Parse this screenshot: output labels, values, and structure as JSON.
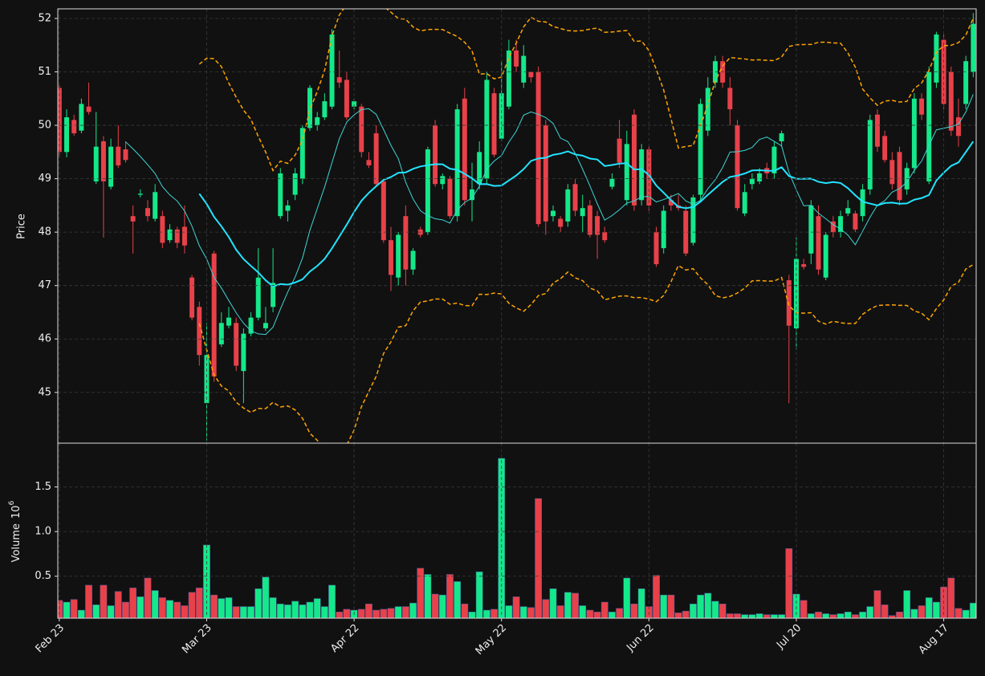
{
  "chart_data": {
    "type": "candlestick",
    "ylabel": "Price",
    "volume_ylabel": "Volume",
    "volume_exponent_base": 10,
    "volume_exponent": 6,
    "categories": [
      "Feb 23",
      null,
      null,
      null,
      null,
      null,
      null,
      null,
      null,
      null,
      null,
      null,
      null,
      null,
      null,
      null,
      null,
      null,
      null,
      null,
      "Mar 23",
      null,
      null,
      null,
      null,
      null,
      null,
      null,
      null,
      null,
      null,
      null,
      null,
      null,
      null,
      null,
      null,
      null,
      null,
      null,
      "Apr 22",
      null,
      null,
      null,
      null,
      null,
      null,
      null,
      null,
      null,
      null,
      null,
      null,
      null,
      null,
      null,
      null,
      null,
      null,
      null,
      "May 22",
      null,
      null,
      null,
      null,
      null,
      null,
      null,
      null,
      null,
      null,
      null,
      null,
      null,
      null,
      null,
      null,
      null,
      null,
      null,
      "Jun 22",
      null,
      null,
      null,
      null,
      null,
      null,
      null,
      null,
      null,
      null,
      null,
      null,
      null,
      null,
      null,
      null,
      null,
      null,
      null,
      "Jul 20",
      null,
      null,
      null,
      null,
      null,
      null,
      null,
      null,
      null,
      null,
      null,
      null,
      null,
      null,
      null,
      null,
      null,
      null,
      null,
      "Aug 17",
      null,
      null,
      null,
      null
    ],
    "open": [
      50.7,
      49.5,
      50.1,
      49.9,
      50.35,
      48.95,
      49.7,
      48.85,
      49.6,
      49.55,
      48.3,
      48.7,
      48.45,
      48.25,
      48.3,
      47.85,
      48.05,
      48.1,
      47.15,
      46.6,
      44.8,
      47.6,
      45.9,
      46.25,
      46.3,
      45.4,
      46.1,
      46.4,
      46.2,
      46.6,
      48.3,
      48.4,
      48.7,
      49.0,
      49.95,
      50.0,
      50.15,
      50.35,
      50.9,
      50.85,
      50.35,
      50.35,
      49.35,
      49.85,
      48.95,
      47.85,
      47.15,
      48.3,
      47.3,
      48.05,
      48.0,
      50.0,
      48.9,
      49.0,
      48.3,
      50.5,
      48.6,
      48.9,
      49.0,
      50.6,
      49.75,
      50.35,
      51.4,
      50.8,
      51.0,
      51.0,
      50.0,
      48.3,
      48.25,
      48.2,
      48.9,
      48.3,
      48.5,
      48.3,
      48.0,
      48.85,
      49.75,
      48.6,
      50.2,
      48.6,
      49.55,
      48.0,
      47.7,
      48.6,
      48.5,
      48.4,
      47.8,
      48.7,
      49.9,
      50.8,
      51.2,
      50.7,
      50.0,
      48.35,
      48.9,
      48.95,
      49.2,
      49.1,
      49.7,
      47.1,
      46.2,
      47.4,
      47.6,
      48.3,
      47.15,
      48.2,
      48.0,
      48.35,
      48.35,
      48.3,
      48.8,
      50.2,
      49.8,
      49.35,
      49.5,
      48.8,
      49.2,
      50.5,
      48.95,
      50.8,
      51.6,
      51.0,
      50.15,
      50.4,
      51.0
    ],
    "high": [
      50.75,
      50.3,
      50.2,
      50.5,
      50.8,
      50.25,
      49.8,
      49.75,
      50.0,
      49.7,
      48.5,
      48.8,
      48.6,
      48.9,
      48.4,
      48.15,
      48.1,
      48.5,
      47.2,
      46.7,
      46.3,
      47.65,
      46.5,
      46.6,
      46.4,
      46.2,
      46.5,
      47.7,
      46.6,
      47.7,
      49.2,
      48.6,
      49.2,
      50.0,
      50.75,
      50.25,
      50.6,
      51.8,
      51.4,
      51.0,
      50.5,
      50.4,
      49.5,
      50.0,
      49.0,
      48.1,
      48.0,
      48.5,
      47.7,
      48.1,
      49.6,
      50.1,
      49.1,
      49.05,
      50.4,
      50.7,
      49.3,
      49.7,
      51.0,
      50.7,
      51.2,
      51.6,
      51.6,
      51.5,
      51.0,
      51.1,
      50.1,
      48.5,
      48.3,
      48.9,
      49.0,
      48.7,
      48.6,
      48.4,
      48.1,
      49.1,
      50.1,
      49.9,
      50.3,
      49.65,
      49.6,
      48.1,
      48.5,
      48.7,
      48.7,
      48.5,
      48.7,
      50.5,
      50.9,
      51.3,
      51.3,
      50.9,
      50.1,
      48.9,
      49.1,
      49.2,
      49.3,
      49.7,
      49.9,
      47.2,
      47.9,
      47.5,
      48.6,
      48.5,
      48.0,
      48.3,
      48.4,
      48.6,
      48.4,
      48.9,
      50.2,
      50.3,
      49.9,
      49.5,
      49.6,
      49.3,
      50.6,
      50.6,
      51.1,
      51.75,
      51.7,
      51.1,
      50.5,
      51.3,
      52.1
    ],
    "low": [
      49.4,
      49.4,
      49.8,
      49.85,
      50.2,
      48.9,
      47.9,
      48.8,
      49.2,
      49.3,
      47.6,
      48.65,
      48.2,
      48.2,
      47.7,
      47.8,
      47.7,
      47.6,
      46.35,
      45.5,
      44.1,
      45.2,
      45.85,
      46.2,
      45.4,
      44.8,
      46.05,
      46.35,
      46.15,
      46.5,
      48.25,
      48.2,
      48.6,
      48.9,
      49.9,
      49.9,
      50.1,
      50.3,
      50.7,
      50.1,
      50.3,
      49.4,
      49.2,
      48.85,
      47.8,
      46.9,
      47.0,
      47.0,
      47.2,
      47.9,
      47.95,
      48.85,
      48.8,
      48.25,
      48.2,
      48.5,
      48.2,
      48.8,
      48.9,
      49.4,
      49.7,
      50.3,
      51.0,
      50.7,
      50.8,
      48.1,
      47.95,
      48.2,
      48.0,
      48.1,
      48.3,
      48.0,
      47.9,
      47.5,
      47.8,
      48.8,
      49.2,
      48.5,
      48.4,
      48.5,
      48.4,
      47.35,
      47.6,
      48.4,
      48.4,
      47.55,
      47.75,
      48.6,
      49.8,
      50.7,
      50.7,
      50.0,
      48.4,
      48.3,
      48.8,
      48.9,
      49.0,
      49.0,
      49.6,
      44.8,
      45.8,
      47.3,
      47.4,
      47.2,
      47.1,
      47.9,
      47.9,
      48.3,
      48.0,
      48.2,
      48.7,
      49.5,
      49.3,
      48.8,
      48.5,
      48.7,
      49.1,
      50.1,
      48.9,
      50.7,
      50.3,
      49.8,
      49.6,
      50.3,
      50.9
    ],
    "close": [
      49.5,
      50.15,
      49.85,
      50.4,
      50.25,
      49.6,
      48.95,
      49.6,
      49.25,
      49.35,
      48.2,
      48.72,
      48.3,
      48.75,
      47.8,
      48.05,
      47.8,
      47.75,
      46.4,
      45.7,
      45.7,
      45.3,
      46.3,
      46.4,
      45.5,
      46.1,
      46.4,
      47.15,
      46.3,
      47.05,
      49.1,
      48.5,
      49.1,
      49.95,
      50.7,
      50.15,
      50.45,
      51.7,
      50.8,
      50.15,
      50.45,
      49.5,
      49.25,
      48.9,
      47.85,
      47.2,
      47.95,
      47.3,
      47.65,
      47.95,
      49.55,
      48.9,
      49.05,
      48.3,
      50.3,
      48.6,
      48.8,
      49.5,
      50.85,
      49.45,
      50.6,
      51.4,
      51.1,
      51.3,
      50.9,
      48.15,
      48.2,
      48.4,
      48.1,
      48.8,
      48.4,
      48.45,
      47.95,
      47.95,
      47.85,
      49.0,
      49.3,
      49.65,
      48.5,
      49.55,
      48.5,
      47.4,
      48.4,
      48.5,
      48.45,
      47.6,
      48.65,
      50.4,
      50.7,
      51.2,
      50.8,
      50.3,
      48.45,
      48.75,
      49.0,
      49.1,
      49.1,
      49.6,
      49.85,
      46.25,
      47.5,
      47.35,
      48.5,
      47.3,
      47.95,
      48.0,
      48.3,
      48.45,
      48.05,
      48.8,
      50.1,
      49.6,
      49.35,
      48.9,
      48.6,
      49.2,
      50.5,
      50.2,
      51.0,
      51.7,
      50.4,
      49.9,
      49.8,
      51.2,
      51.9
    ],
    "volume": [
      0.23,
      0.21,
      0.24,
      0.12,
      0.4,
      0.18,
      0.4,
      0.17,
      0.33,
      0.21,
      0.37,
      0.27,
      0.48,
      0.34,
      0.26,
      0.23,
      0.21,
      0.17,
      0.32,
      0.37,
      0.85,
      0.29,
      0.25,
      0.26,
      0.16,
      0.16,
      0.16,
      0.36,
      0.49,
      0.26,
      0.19,
      0.18,
      0.22,
      0.18,
      0.21,
      0.25,
      0.16,
      0.4,
      0.1,
      0.13,
      0.12,
      0.13,
      0.19,
      0.12,
      0.13,
      0.14,
      0.16,
      0.16,
      0.2,
      0.59,
      0.52,
      0.3,
      0.29,
      0.52,
      0.44,
      0.19,
      0.1,
      0.55,
      0.12,
      0.13,
      1.82,
      0.17,
      0.27,
      0.16,
      0.15,
      1.37,
      0.24,
      0.36,
      0.17,
      0.32,
      0.31,
      0.17,
      0.12,
      0.1,
      0.21,
      0.1,
      0.14,
      0.48,
      0.19,
      0.36,
      0.16,
      0.51,
      0.29,
      0.29,
      0.09,
      0.11,
      0.19,
      0.29,
      0.31,
      0.22,
      0.19,
      0.08,
      0.08,
      0.07,
      0.07,
      0.08,
      0.07,
      0.07,
      0.07,
      0.81,
      0.3,
      0.23,
      0.08,
      0.1,
      0.08,
      0.07,
      0.08,
      0.1,
      0.07,
      0.1,
      0.16,
      0.34,
      0.18,
      0.06,
      0.1,
      0.34,
      0.13,
      0.17,
      0.26,
      0.21,
      0.38,
      0.48,
      0.14,
      0.12,
      0.2
    ],
    "up_color": "#14e88a",
    "down_color": "#e8414a",
    "xlim": [
      -0.2,
      124.4
    ],
    "ylim": [
      44.05,
      52.18
    ],
    "yticks": [
      45,
      46,
      47,
      48,
      49,
      50,
      51,
      52
    ],
    "volume_ylim": [
      0.03,
      1.99
    ],
    "volume_yticks": [
      0.5,
      {
        "value": 1,
        "label": "1.0"
      },
      1.5
    ],
    "moving_averages": [
      {
        "window": 10,
        "color": "#3fd6d6",
        "width": 1
      },
      {
        "window": 20,
        "color": "#22e4ff",
        "width": 2
      }
    ],
    "bollinger": {
      "window": 20,
      "std": 2,
      "color": "#ffa500"
    },
    "grid": true
  }
}
